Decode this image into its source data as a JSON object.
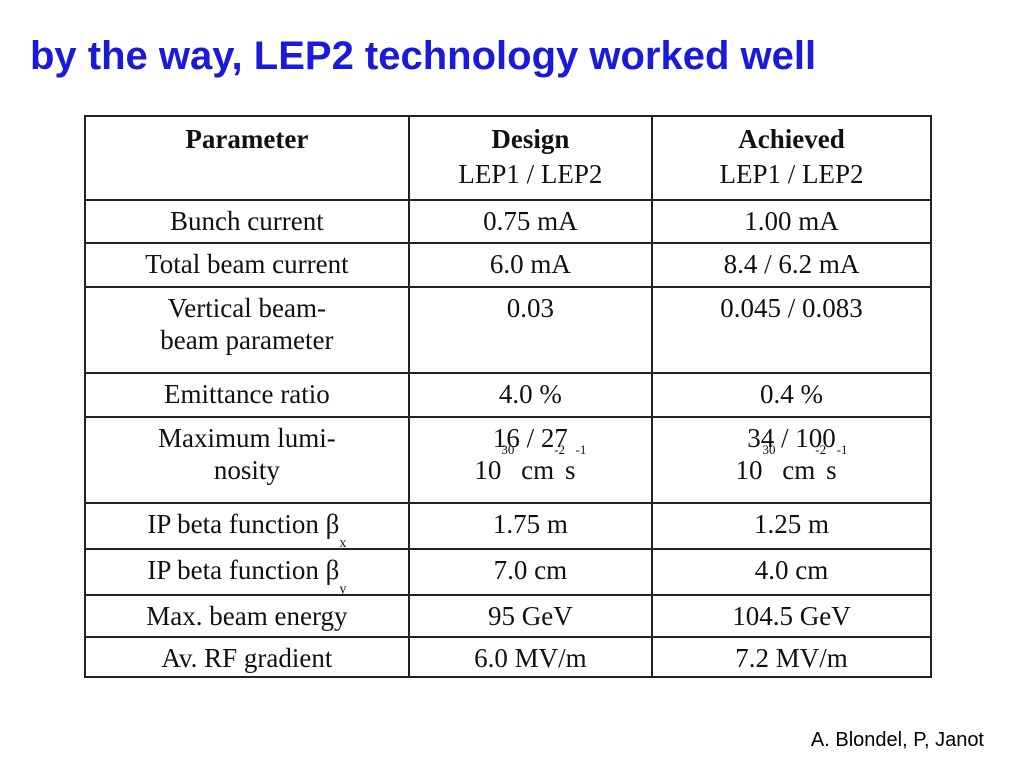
{
  "title": "by the way, LEP2 technology worked well",
  "table": {
    "header": [
      {
        "main": "Parameter",
        "sub": ""
      },
      {
        "main": "Design",
        "sub": "LEP1 / LEP2"
      },
      {
        "main": "Achieved",
        "sub": "LEP1 / LEP2"
      }
    ],
    "rows": [
      {
        "parameter": "Bunch current",
        "design": "0.75 mA",
        "achieved": "1.00 mA"
      },
      {
        "parameter": "Total beam current",
        "design": "6.0 mA",
        "achieved": "8.4 / 6.2 mA"
      },
      {
        "parameter_l1": "Vertical beam-",
        "parameter_l2": "beam parameter",
        "design": "0.03",
        "achieved": "0.045 / 0.083"
      },
      {
        "parameter": "Emittance ratio",
        "design": "4.0 %",
        "achieved": "0.4 %"
      },
      {
        "parameter_l1": "Maximum lumi-",
        "parameter_l2": "nosity",
        "design_l1": "16 / 27",
        "achieved_l1": "34 / 100",
        "unit_base": "10",
        "unit_exp": "30",
        "unit_cm": " cm",
        "unit_cm_exp": "-2",
        "unit_s": "s",
        "unit_s_exp": "-1"
      },
      {
        "parameter": "IP beta function β",
        "parameter_sub": "x",
        "design": "1.75 m",
        "achieved": "1.25 m"
      },
      {
        "parameter": "IP beta function β",
        "parameter_sub": "y",
        "design": "7.0 cm",
        "achieved": "4.0 cm"
      },
      {
        "parameter": "Max. beam energy",
        "design": "95 GeV",
        "achieved": "104.5 GeV"
      },
      {
        "parameter": "Av. RF gradient",
        "design": "6.0 MV/m",
        "achieved": "7.2 MV/m"
      }
    ]
  },
  "credit": "A. Blondel, P, Janot"
}
